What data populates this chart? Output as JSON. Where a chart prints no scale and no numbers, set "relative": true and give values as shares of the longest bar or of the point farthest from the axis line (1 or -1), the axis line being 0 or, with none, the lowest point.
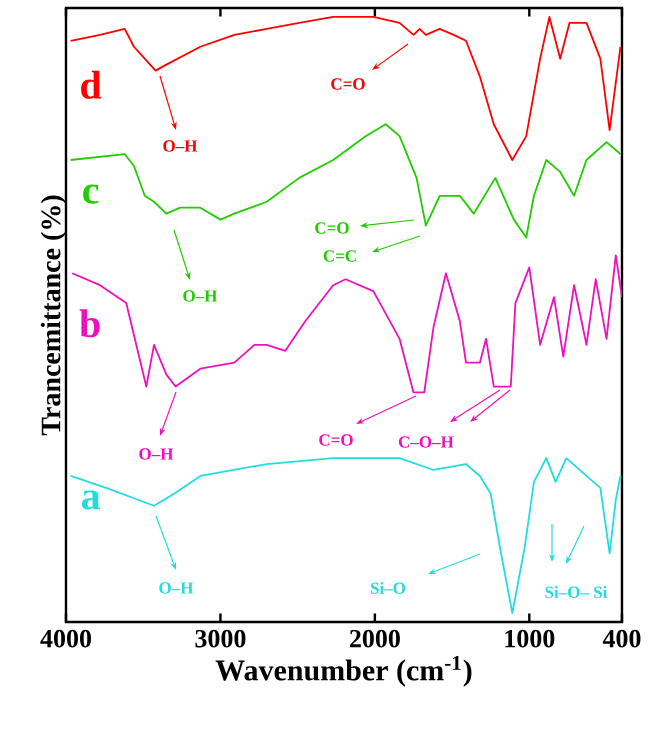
{
  "chart_data": {
    "type": "line",
    "relative": true,
    "xlabel": "Wavenumber (cm$^{-1}$)",
    "ylabel": "Trancemittance (%)",
    "xlim": [
      4000,
      400
    ],
    "xticks": [
      4000,
      3000,
      2000,
      1000,
      400
    ],
    "tick_labels": "x",
    "legend": "left",
    "grid": false,
    "series": [
      {
        "name": "d",
        "color": "#ff0000",
        "x": [
          3970,
          3780,
          3620,
          3560,
          3490,
          3420,
          3350,
          3130,
          2910,
          2700,
          2490,
          2270,
          2010,
          1840,
          1750,
          1710,
          1670,
          1580,
          1490,
          1410,
          1320,
          1230,
          1110,
          1020,
          930,
          870,
          800,
          740,
          630,
          540,
          480,
          440,
          410
        ],
        "values": [
          0.96,
          0.97,
          0.98,
          0.95,
          0.93,
          0.91,
          0.92,
          0.95,
          0.97,
          0.98,
          0.99,
          1.0,
          1.0,
          0.99,
          0.97,
          0.98,
          0.97,
          0.98,
          0.97,
          0.96,
          0.9,
          0.82,
          0.76,
          0.8,
          0.93,
          1.0,
          0.93,
          0.99,
          0.99,
          0.93,
          0.81,
          0.89,
          0.95
        ]
      },
      {
        "name": "c",
        "color": "#22cc00",
        "x": [
          3970,
          3620,
          3560,
          3490,
          3430,
          3350,
          3260,
          3130,
          3000,
          2910,
          2700,
          2490,
          2270,
          2060,
          1930,
          1840,
          1730,
          1670,
          1580,
          1450,
          1360,
          1220,
          1100,
          1020,
          970,
          890,
          800,
          710,
          630,
          500,
          410
        ],
        "values": [
          0.76,
          0.77,
          0.75,
          0.7,
          0.69,
          0.67,
          0.68,
          0.68,
          0.66,
          0.67,
          0.69,
          0.73,
          0.76,
          0.8,
          0.82,
          0.8,
          0.73,
          0.65,
          0.7,
          0.7,
          0.67,
          0.73,
          0.66,
          0.63,
          0.7,
          0.76,
          0.74,
          0.7,
          0.76,
          0.79,
          0.77
        ]
      },
      {
        "name": "b",
        "color": "#ee11bb",
        "x": [
          3960,
          3780,
          3610,
          3480,
          3430,
          3350,
          3290,
          3130,
          2910,
          2780,
          2700,
          2580,
          2450,
          2270,
          2190,
          2010,
          1840,
          1750,
          1680,
          1620,
          1540,
          1450,
          1410,
          1320,
          1280,
          1230,
          1120,
          1090,
          1000,
          930,
          840,
          780,
          710,
          630,
          570,
          500,
          440,
          400
        ],
        "values": [
          0.57,
          0.55,
          0.52,
          0.38,
          0.45,
          0.4,
          0.38,
          0.41,
          0.42,
          0.45,
          0.45,
          0.44,
          0.49,
          0.55,
          0.56,
          0.54,
          0.46,
          0.37,
          0.37,
          0.48,
          0.57,
          0.49,
          0.42,
          0.42,
          0.46,
          0.38,
          0.38,
          0.52,
          0.58,
          0.45,
          0.53,
          0.43,
          0.55,
          0.45,
          0.56,
          0.46,
          0.6,
          0.53
        ]
      },
      {
        "name": "a",
        "color": "#22dddd",
        "x": [
          3970,
          3740,
          3430,
          3300,
          3130,
          2700,
          2270,
          1840,
          1620,
          1410,
          1320,
          1250,
          1190,
          1110,
          1030,
          970,
          890,
          830,
          760,
          630,
          540,
          480,
          440,
          410
        ],
        "values": [
          0.23,
          0.21,
          0.18,
          0.2,
          0.23,
          0.25,
          0.26,
          0.26,
          0.24,
          0.25,
          0.23,
          0.2,
          0.11,
          0.0,
          0.11,
          0.22,
          0.26,
          0.22,
          0.26,
          0.23,
          0.21,
          0.1,
          0.19,
          0.23
        ]
      }
    ],
    "annotations": [
      "O–H",
      "C=O",
      "O–H",
      "C=O",
      "C=C",
      "O–H",
      "C=O",
      "C–O–H",
      "O–H",
      "Si–O",
      "Si–O– Si"
    ]
  }
}
